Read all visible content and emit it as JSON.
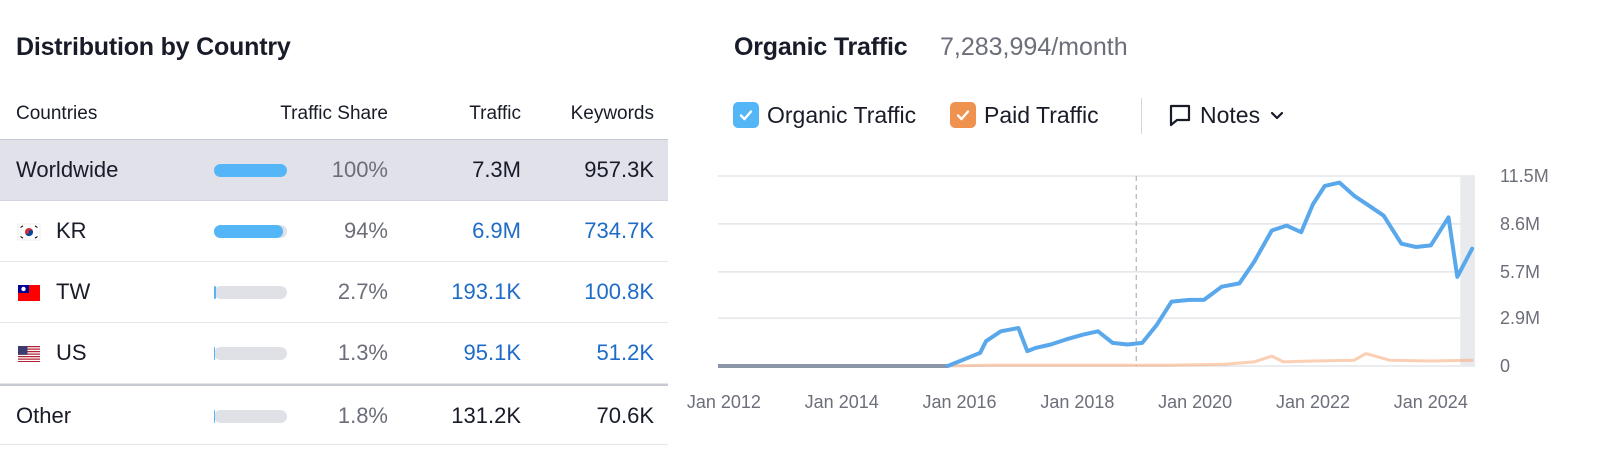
{
  "distribution": {
    "title": "Distribution by Country",
    "headers": {
      "countries": "Countries",
      "share": "Traffic Share",
      "traffic": "Traffic",
      "keywords": "Keywords"
    },
    "rows": [
      {
        "name": "Worldwide",
        "flag": "",
        "share": 1.0,
        "share_label": "100%",
        "traffic": "7.3M",
        "keywords": "957.3K"
      },
      {
        "name": "KR",
        "flag": "south-korea-flag-icon",
        "share": 0.94,
        "share_label": "94%",
        "traffic": "6.9M",
        "keywords": "734.7K"
      },
      {
        "name": "TW",
        "flag": "taiwan-flag-icon",
        "share": 0.027,
        "share_label": "2.7%",
        "traffic": "193.1K",
        "keywords": "100.8K"
      },
      {
        "name": "US",
        "flag": "us-flag-icon",
        "share": 0.013,
        "share_label": "1.3%",
        "traffic": "95.1K",
        "keywords": "51.2K"
      },
      {
        "name": "Other",
        "flag": "",
        "share": 0.018,
        "share_label": "1.8%",
        "traffic": "131.2K",
        "keywords": "70.6K"
      }
    ]
  },
  "organic": {
    "title": "Organic Traffic",
    "total": "7,283,994/month",
    "legend": {
      "organic": "Organic Traffic",
      "paid": "Paid Traffic",
      "notes": "Notes"
    }
  },
  "colors": {
    "organic": "#5aa8ec",
    "paid": "#f7a877",
    "checkbox_blue": "#55b6f7",
    "checkbox_orange": "#f0924f",
    "link": "#1e6bc8",
    "bar": "#55b6f7"
  },
  "chart_data": {
    "type": "line",
    "title": "",
    "xlabel": "",
    "ylabel": "",
    "x_ticks": [
      "Jan 2012",
      "Jan 2014",
      "Jan 2016",
      "Jan 2018",
      "Jan 2020",
      "Jan 2022",
      "Jan 2024"
    ],
    "y_ticks": [
      "0",
      "2.9M",
      "5.7M",
      "8.6M",
      "11.5M"
    ],
    "ylim": [
      0,
      11.5
    ],
    "xlim": [
      2011.9,
      2024.75
    ],
    "grid": true,
    "y_axis_side": "right",
    "series": [
      {
        "name": "Organic Traffic",
        "x": [
          2011.9,
          2015.8,
          2016.35,
          2016.45,
          2016.7,
          2017.0,
          2017.15,
          2017.3,
          2017.55,
          2017.8,
          2018.1,
          2018.35,
          2018.6,
          2018.85,
          2019.1,
          2019.35,
          2019.6,
          2019.9,
          2020.15,
          2020.45,
          2020.75,
          2021.0,
          2021.3,
          2021.55,
          2021.8,
          2022.0,
          2022.2,
          2022.45,
          2022.7,
          2022.95,
          2023.2,
          2023.5,
          2023.75,
          2024.0,
          2024.3,
          2024.45,
          2024.7
        ],
        "values": [
          0,
          0,
          0.8,
          1.5,
          2.1,
          2.3,
          0.9,
          1.1,
          1.3,
          1.6,
          1.9,
          2.1,
          1.4,
          1.3,
          1.4,
          2.5,
          3.9,
          4.0,
          4.0,
          4.8,
          5.0,
          6.3,
          8.2,
          8.5,
          8.1,
          9.8,
          10.9,
          11.1,
          10.3,
          9.7,
          9.1,
          7.4,
          7.2,
          7.3,
          9.0,
          5.4,
          7.1
        ]
      },
      {
        "name": "Paid Traffic",
        "x": [
          2011.9,
          2015.8,
          2016.5,
          2017.5,
          2018.5,
          2019.5,
          2020.5,
          2021.0,
          2021.3,
          2021.5,
          2022.0,
          2022.7,
          2022.9,
          2023.3,
          2024.0,
          2024.7
        ],
        "values": [
          0,
          0,
          0.05,
          0.05,
          0.05,
          0.05,
          0.1,
          0.25,
          0.6,
          0.25,
          0.3,
          0.35,
          0.75,
          0.35,
          0.3,
          0.35
        ]
      }
    ]
  }
}
